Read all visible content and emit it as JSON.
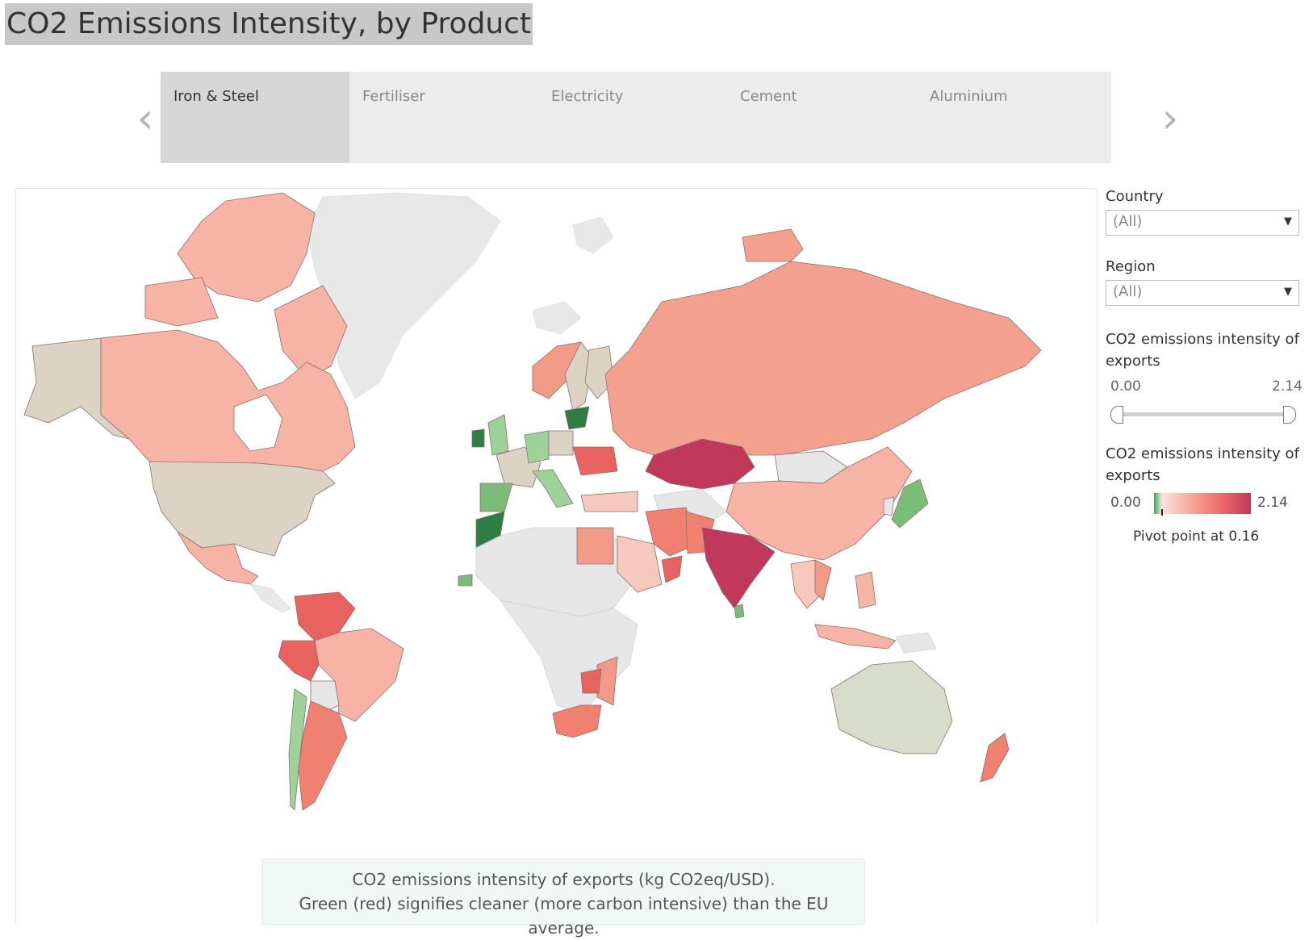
{
  "title": "CO2 Emissions Intensity, by Product",
  "tabs": [
    {
      "label": "Iron & Steel",
      "active": true
    },
    {
      "label": "Fertiliser",
      "active": false
    },
    {
      "label": "Electricity",
      "active": false
    },
    {
      "label": "Cement",
      "active": false
    },
    {
      "label": "Aluminium",
      "active": false
    }
  ],
  "filters": {
    "country": {
      "label": "Country",
      "value": "(All)"
    },
    "region": {
      "label": "Region",
      "value": "(All)"
    }
  },
  "range_filter": {
    "label": "CO2 emissions intensity of exports",
    "min": "0.00",
    "max": "2.14"
  },
  "color_legend": {
    "label": "CO2 emissions intensity of exports",
    "min": "0.00",
    "max": "2.14",
    "pivot_text": "Pivot point at 0.16",
    "colors": {
      "green": "#4e9b59",
      "light_green": "#9fd29a",
      "neutral": "#ddd3c5",
      "light_red": "#f7b3a6",
      "mid_red": "#f29a88",
      "red": "#e8625f",
      "dark_red": "#c0385a",
      "no_data": "#e6e6e6"
    }
  },
  "caption": {
    "line1": "CO2 emissions intensity of exports (kg CO2eq/USD).",
    "line2": "Green (red) signifies cleaner (more carbon intensive) than the EU average."
  },
  "icons": {
    "prev": "chevron-left-icon",
    "next": "chevron-right-icon",
    "dropdown": "caret-down-icon"
  }
}
